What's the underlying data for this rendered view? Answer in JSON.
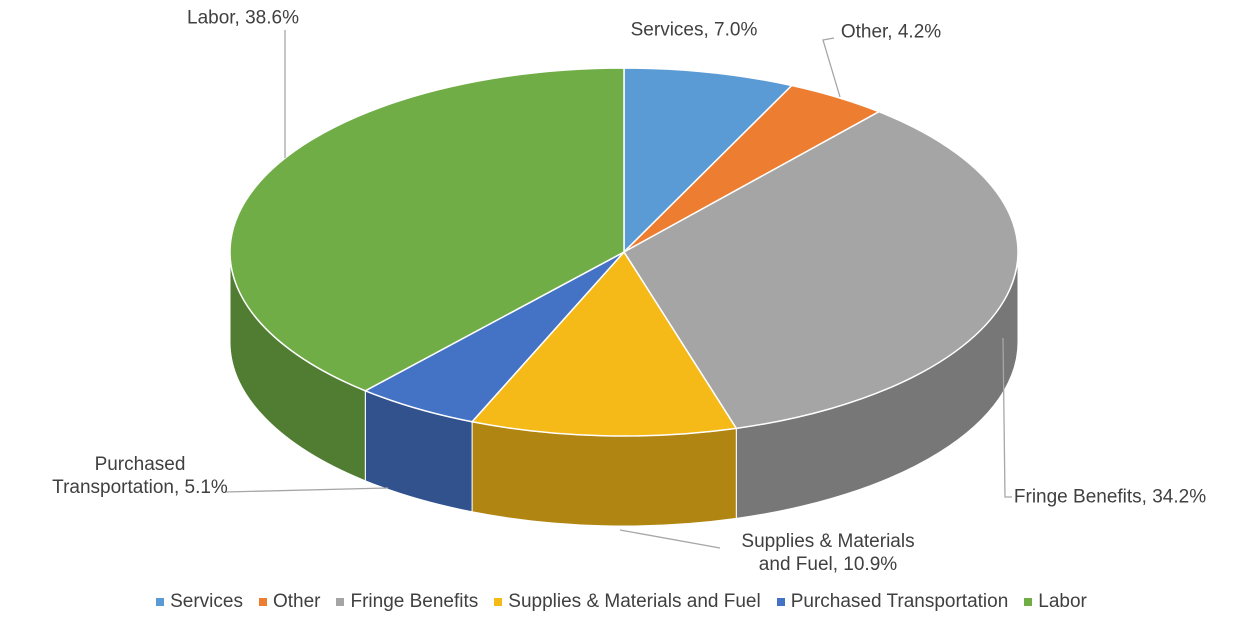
{
  "chart_data": {
    "type": "pie",
    "categories": [
      "Services",
      "Other",
      "Fringe Benefits",
      "Supplies & Materials and Fuel",
      "Purchased Transportation",
      "Labor"
    ],
    "values": [
      7.0,
      4.2,
      34.2,
      10.9,
      5.1,
      38.6
    ],
    "value_labels": [
      "Services, 7.0%",
      "Other, 4.2%",
      "Fringe Benefits, 34.2%",
      "Supplies & Materials\nand Fuel, 10.9%",
      "Purchased\nTransportation, 5.1%",
      "Labor, 38.6%"
    ],
    "colors": [
      "#5b9bd5",
      "#ed7d31",
      "#a5a5a5",
      "#f5b918",
      "#4472c4",
      "#70ad47"
    ],
    "legend": "bottom"
  }
}
